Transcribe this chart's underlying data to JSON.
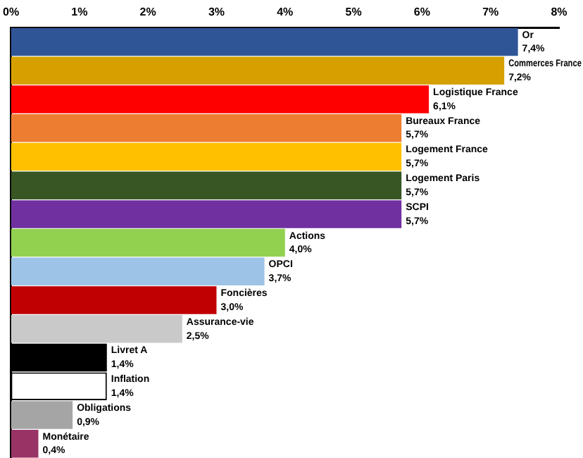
{
  "chart_data": {
    "type": "bar",
    "orientation": "horizontal",
    "categories": [
      "Or",
      "Commerces France",
      "Logistique France",
      "Bureaux France",
      "Logement France",
      "Logement Paris",
      "SCPI",
      "Actions",
      "OPCI",
      "Foncières",
      "Assurance-vie",
      "Livret A",
      "Inflation",
      "Obligations",
      "Monétaire"
    ],
    "values": [
      7.4,
      7.2,
      6.1,
      5.7,
      5.7,
      5.7,
      5.7,
      4.0,
      3.7,
      3.0,
      2.5,
      1.4,
      1.4,
      0.9,
      0.4
    ],
    "value_labels": [
      "7,4%",
      "7,2%",
      "6,1%",
      "5,7%",
      "5,7%",
      "5,7%",
      "5,7%",
      "4,0%",
      "3,7%",
      "3,0%",
      "2,5%",
      "1,4%",
      "1,4%",
      "0,9%",
      "0,4%"
    ],
    "colors": [
      "#2f5597",
      "#d6a000",
      "#ff0000",
      "#ed7d31",
      "#ffc000",
      "#375623",
      "#7030a0",
      "#92d050",
      "#9dc3e6",
      "#c00000",
      "#c9c9c9",
      "#000000",
      "#ffffff",
      "#a5a5a5",
      "#993366"
    ],
    "xlim": [
      0,
      8
    ],
    "xticks": [
      {
        "value": 0,
        "label": "0%"
      },
      {
        "value": 1,
        "label": "1%"
      },
      {
        "value": 2,
        "label": "2%"
      },
      {
        "value": 3,
        "label": "3%"
      },
      {
        "value": 4,
        "label": "4%"
      },
      {
        "value": 5,
        "label": "5%"
      },
      {
        "value": 6,
        "label": "6%"
      },
      {
        "value": 7,
        "label": "7%"
      },
      {
        "value": 8,
        "label": "8%"
      }
    ],
    "tick_labels": "x",
    "grid": false,
    "legend": false
  }
}
